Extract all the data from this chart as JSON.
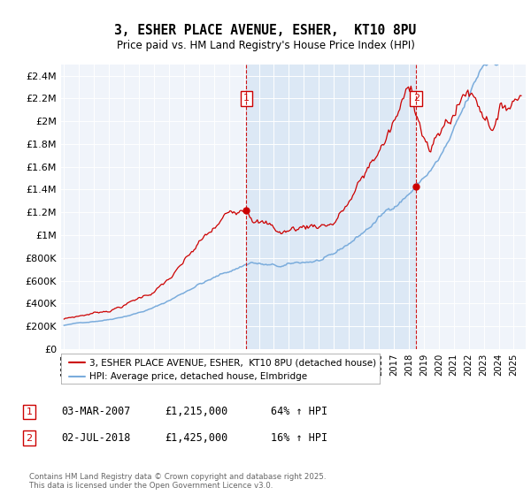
{
  "title": "3, ESHER PLACE AVENUE, ESHER,  KT10 8PU",
  "subtitle": "Price paid vs. HM Land Registry's House Price Index (HPI)",
  "background_color": "#ffffff",
  "plot_bg_color": "#f0f4fa",
  "shaded_region_color": "#dce8f5",
  "legend_label_red": "3, ESHER PLACE AVENUE, ESHER,  KT10 8PU (detached house)",
  "legend_label_blue": "HPI: Average price, detached house, Elmbridge",
  "footer": "Contains HM Land Registry data © Crown copyright and database right 2025.\nThis data is licensed under the Open Government Licence v3.0.",
  "annotation1_label": "1",
  "annotation1_date": "03-MAR-2007",
  "annotation1_price": "£1,215,000",
  "annotation1_hpi": "64% ↑ HPI",
  "annotation2_label": "2",
  "annotation2_date": "02-JUL-2018",
  "annotation2_price": "£1,425,000",
  "annotation2_hpi": "16% ↑ HPI",
  "red_color": "#cc0000",
  "blue_color": "#7aacdc",
  "t1_year": 2007.17,
  "t2_year": 2018.5,
  "t1_red_price": 1215000,
  "t2_red_price": 1425000,
  "ylim": [
    0,
    2500000
  ],
  "ytick_values": [
    0,
    200000,
    400000,
    600000,
    800000,
    1000000,
    1200000,
    1400000,
    1600000,
    1800000,
    2000000,
    2200000,
    2400000
  ],
  "xlim_start": 1994.8,
  "xlim_end": 2025.8
}
